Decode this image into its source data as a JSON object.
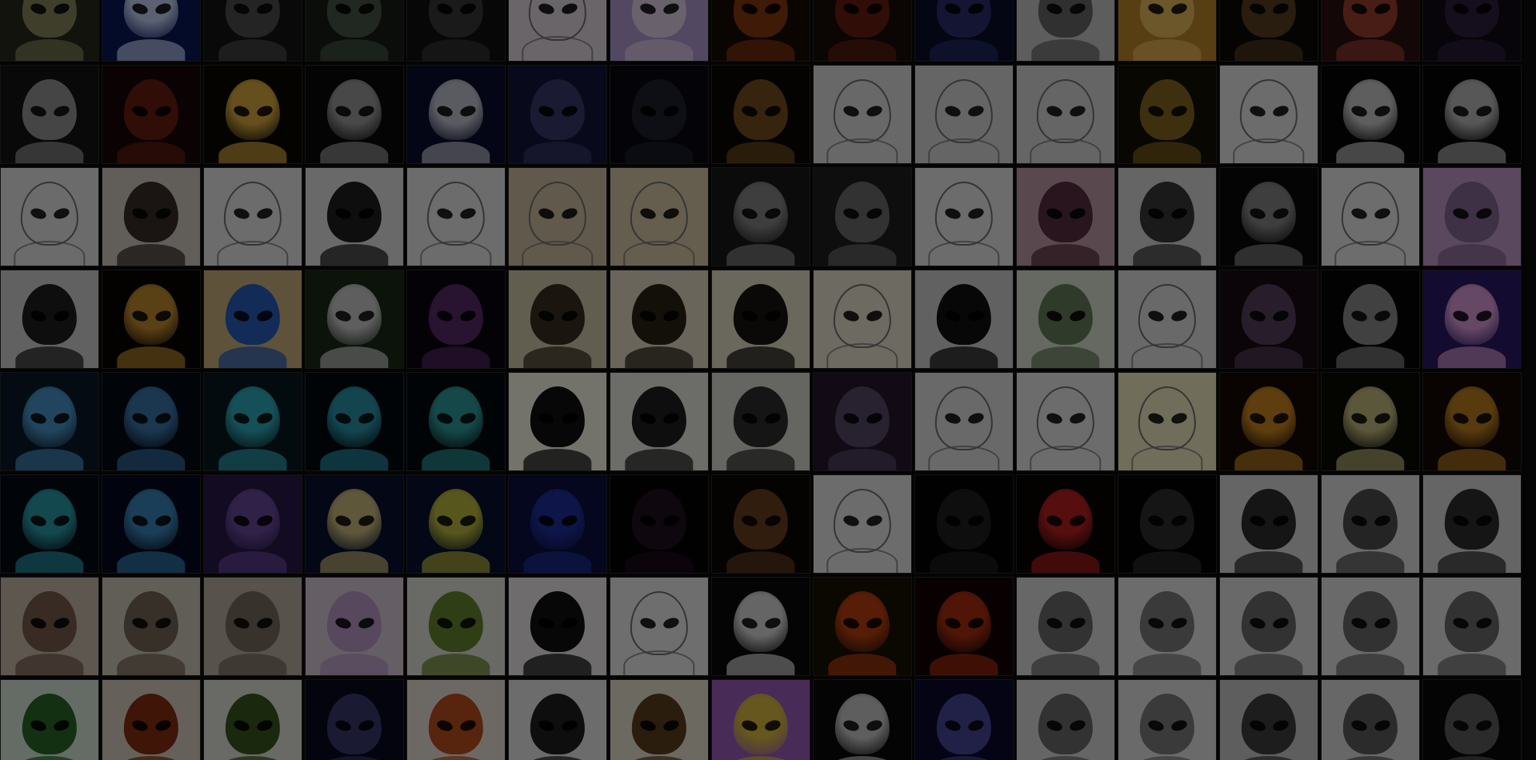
{
  "gallery": {
    "columns": 15,
    "rows": 8,
    "overlay": "dimmed",
    "tiles": [
      {
        "bg": "#2a2a1e",
        "fg": "#8a8a60",
        "style": "dark"
      },
      {
        "bg": "#0b1a5a",
        "fg": "#c9d6ff",
        "style": "glow"
      },
      {
        "bg": "#151515",
        "fg": "#505050",
        "style": "dark"
      },
      {
        "bg": "#1a1e1a",
        "fg": "#4a5a4a",
        "style": "dark"
      },
      {
        "bg": "#111",
        "fg": "#3a3a3a",
        "style": "dark"
      },
      {
        "bg": "#e9dfe8",
        "fg": "#b59fb6",
        "style": "sketch"
      },
      {
        "bg": "#b9a0d8",
        "fg": "#e8d8f0",
        "style": "light"
      },
      {
        "bg": "#1a0c06",
        "fg": "#8a3a10",
        "style": "dark"
      },
      {
        "bg": "#1a0c08",
        "fg": "#6a2010",
        "style": "dark"
      },
      {
        "bg": "#0b0e2a",
        "fg": "#2a3070",
        "style": "dark"
      },
      {
        "bg": "#cfcfcf",
        "fg": "#6a6a6a",
        "style": "light"
      },
      {
        "bg": "#c48a2a",
        "fg": "#f0c060",
        "style": "light"
      },
      {
        "bg": "#0e0a06",
        "fg": "#5a4020",
        "style": "dark"
      },
      {
        "bg": "#2a1210",
        "fg": "#a04030",
        "style": "dark"
      },
      {
        "bg": "#100a18",
        "fg": "#302040",
        "style": "dark"
      },
      {
        "bg": "#151515",
        "fg": "#9a9a9a",
        "style": "dark"
      },
      {
        "bg": "#1a0808",
        "fg": "#6a2010",
        "style": "dark"
      },
      {
        "bg": "#0a0800",
        "fg": "#e0b040",
        "style": "glow"
      },
      {
        "bg": "#0a0a0a",
        "fg": "#a0a0a0",
        "style": "glow"
      },
      {
        "bg": "#0a0e30",
        "fg": "#c8c8d8",
        "style": "glow"
      },
      {
        "bg": "#12163a",
        "fg": "#3a3a70",
        "style": "dark"
      },
      {
        "bg": "#0a0a12",
        "fg": "#202030",
        "style": "dark"
      },
      {
        "bg": "#0a0806",
        "fg": "#7a5020",
        "style": "dark"
      },
      {
        "bg": "#e6e6e6",
        "fg": "#9a9a9a",
        "style": "sketch"
      },
      {
        "bg": "#e0e0e0",
        "fg": "#8a8a8a",
        "style": "sketch"
      },
      {
        "bg": "#e0e0e0",
        "fg": "#7a7a7a",
        "style": "sketch"
      },
      {
        "bg": "#141004",
        "fg": "#8a6a20",
        "style": "dark"
      },
      {
        "bg": "#f0f0f0",
        "fg": "#303030",
        "style": "sketch"
      },
      {
        "bg": "#050505",
        "fg": "#d0d0d0",
        "style": "glow"
      },
      {
        "bg": "#050505",
        "fg": "#c0c0c0",
        "style": "glow"
      },
      {
        "bg": "#eeeeee",
        "fg": "#202020",
        "style": "sketch"
      },
      {
        "bg": "#d8d0c8",
        "fg": "#3a3028",
        "style": "light"
      },
      {
        "bg": "#f0f0f0",
        "fg": "#303030",
        "style": "sketch"
      },
      {
        "bg": "#e8e8e8",
        "fg": "#202020",
        "style": "light"
      },
      {
        "bg": "#f0f0f0",
        "fg": "#303030",
        "style": "sketch"
      },
      {
        "bg": "#d8c8a8",
        "fg": "#9a8a6a",
        "style": "sketch"
      },
      {
        "bg": "#e0d0b0",
        "fg": "#a08a60",
        "style": "sketch"
      },
      {
        "bg": "#1a1a1a",
        "fg": "#8a8a8a",
        "style": "glow"
      },
      {
        "bg": "#202020",
        "fg": "#707070",
        "style": "dark"
      },
      {
        "bg": "#f0f0f0",
        "fg": "#303030",
        "style": "sketch"
      },
      {
        "bg": "#c8a0b0",
        "fg": "#5a3040",
        "style": "light"
      },
      {
        "bg": "#e0e0e0",
        "fg": "#3a3a3a",
        "style": "light"
      },
      {
        "bg": "#0a0a0a",
        "fg": "#8a8a8a",
        "style": "glow"
      },
      {
        "bg": "#f2f2f2",
        "fg": "#303030",
        "style": "sketch"
      },
      {
        "bg": "#c8a0d0",
        "fg": "#8a6a9a",
        "style": "light"
      },
      {
        "bg": "#d8d8d8",
        "fg": "#202020",
        "style": "light"
      },
      {
        "bg": "#0a0604",
        "fg": "#c89030",
        "style": "glow"
      },
      {
        "bg": "#d0b880",
        "fg": "#2a60c0",
        "style": "light"
      },
      {
        "bg": "#1a2a1a",
        "fg": "#d0d0d0",
        "style": "glow"
      },
      {
        "bg": "#0a0610",
        "fg": "#5a2a6a",
        "style": "dark"
      },
      {
        "bg": "#d8d0b0",
        "fg": "#3a3020",
        "style": "light"
      },
      {
        "bg": "#e8e0c8",
        "fg": "#2a2418",
        "style": "light"
      },
      {
        "bg": "#ece4cc",
        "fg": "#181410",
        "style": "light"
      },
      {
        "bg": "#f0ecd8",
        "fg": "#6a6040",
        "style": "sketch"
      },
      {
        "bg": "#d8d8d8",
        "fg": "#101010",
        "style": "light"
      },
      {
        "bg": "#e0e8d8",
        "fg": "#6a8060",
        "style": "light"
      },
      {
        "bg": "#e8e8e8",
        "fg": "#5a5a5a",
        "style": "sketch"
      },
      {
        "bg": "#1a0c14",
        "fg": "#5a4060",
        "style": "dark"
      },
      {
        "bg": "#050505",
        "fg": "#909090",
        "style": "dark"
      },
      {
        "bg": "#2a1a6a",
        "fg": "#e0a0e0",
        "style": "glow"
      },
      {
        "bg": "#0a1a2a",
        "fg": "#4a9ad0",
        "style": "glow"
      },
      {
        "bg": "#040a14",
        "fg": "#3a7ab0",
        "style": "glow"
      },
      {
        "bg": "#0a1a20",
        "fg": "#30b0c0",
        "style": "glow"
      },
      {
        "bg": "#040a10",
        "fg": "#2a9ab0",
        "style": "glow"
      },
      {
        "bg": "#040a10",
        "fg": "#30a0a0",
        "style": "glow"
      },
      {
        "bg": "#fffff0",
        "fg": "#101010",
        "style": "light"
      },
      {
        "bg": "#f0f0e8",
        "fg": "#202020",
        "style": "light"
      },
      {
        "bg": "#e0e0d8",
        "fg": "#303030",
        "style": "light"
      },
      {
        "bg": "#281a30",
        "fg": "#5a4a6a",
        "style": "dark"
      },
      {
        "bg": "#e8e8e8",
        "fg": "#404040",
        "style": "sketch"
      },
      {
        "bg": "#f0f0f0",
        "fg": "#101010",
        "style": "sketch"
      },
      {
        "bg": "#f8f4c8",
        "fg": "#101010",
        "style": "sketch"
      },
      {
        "bg": "#140a04",
        "fg": "#d08a20",
        "style": "glow"
      },
      {
        "bg": "#0a0a04",
        "fg": "#c8c080",
        "style": "glow"
      },
      {
        "bg": "#140804",
        "fg": "#c08020",
        "style": "glow"
      },
      {
        "bg": "#040a14",
        "fg": "#2aa0b0",
        "style": "glow"
      },
      {
        "bg": "#040a20",
        "fg": "#3a8ac0",
        "style": "glow"
      },
      {
        "bg": "#2a1a4a",
        "fg": "#6a4aa0",
        "style": "glow"
      },
      {
        "bg": "#0a1030",
        "fg": "#d0c080",
        "style": "glow"
      },
      {
        "bg": "#0a1030",
        "fg": "#c0c040",
        "style": "glow"
      },
      {
        "bg": "#0a1040",
        "fg": "#2030a0",
        "style": "glow"
      },
      {
        "bg": "#050305",
        "fg": "#201020",
        "style": "dark"
      },
      {
        "bg": "#0a0806",
        "fg": "#6a4020",
        "style": "dark"
      },
      {
        "bg": "#f0f0f0",
        "fg": "#303030",
        "style": "sketch"
      },
      {
        "bg": "#040404",
        "fg": "#202020",
        "style": "dark"
      },
      {
        "bg": "#0a0404",
        "fg": "#c02020",
        "style": "glow"
      },
      {
        "bg": "#040404",
        "fg": "#303030",
        "style": "dark"
      },
      {
        "bg": "#e0e0e0",
        "fg": "#303030",
        "style": "light"
      },
      {
        "bg": "#e8e8e8",
        "fg": "#505050",
        "style": "light"
      },
      {
        "bg": "#e0e0e0",
        "fg": "#303030",
        "style": "light"
      },
      {
        "bg": "#d0c0b0",
        "fg": "#7a6050",
        "style": "light"
      },
      {
        "bg": "#d8d0c0",
        "fg": "#7a6a5a",
        "style": "light"
      },
      {
        "bg": "#c0b8a8",
        "fg": "#7a7060",
        "style": "light"
      },
      {
        "bg": "#e0d0e0",
        "fg": "#c0a0d0",
        "style": "light"
      },
      {
        "bg": "#e8e8e0",
        "fg": "#6a8a30",
        "style": "light"
      },
      {
        "bg": "#f4f0f0",
        "fg": "#101010",
        "style": "light"
      },
      {
        "bg": "#f4f4f4",
        "fg": "#303030",
        "style": "sketch"
      },
      {
        "bg": "#0a0a0a",
        "fg": "#e0e0e0",
        "style": "glow"
      },
      {
        "bg": "#1a1004",
        "fg": "#c04010",
        "style": "glow"
      },
      {
        "bg": "#140404",
        "fg": "#b03010",
        "style": "glow"
      },
      {
        "bg": "#e4e4e4",
        "fg": "#707070",
        "style": "light"
      },
      {
        "bg": "#f0f0f0",
        "fg": "#808080",
        "style": "light"
      },
      {
        "bg": "#e8e8e8",
        "fg": "#707070",
        "style": "light"
      },
      {
        "bg": "#eaeaea",
        "fg": "#707070",
        "style": "light"
      },
      {
        "bg": "#ececec",
        "fg": "#707070",
        "style": "light"
      },
      {
        "bg": "#e0f0e0",
        "fg": "#2a6a2a",
        "style": "light"
      },
      {
        "bg": "#e0d8c8",
        "fg": "#8a3010",
        "style": "light"
      },
      {
        "bg": "#e8e8e0",
        "fg": "#3a5a20",
        "style": "light"
      },
      {
        "bg": "#0a0a20",
        "fg": "#3a3a70",
        "style": "dark"
      },
      {
        "bg": "#f0e8e0",
        "fg": "#c05020",
        "style": "light"
      },
      {
        "bg": "#f0f0f0",
        "fg": "#202020",
        "style": "light"
      },
      {
        "bg": "#f0e8d8",
        "fg": "#604020",
        "style": "light"
      },
      {
        "bg": "#a060c0",
        "fg": "#e0c040",
        "style": "glow"
      },
      {
        "bg": "#0a0a0a",
        "fg": "#d0d0d0",
        "style": "glow"
      },
      {
        "bg": "#0a0a30",
        "fg": "#4a4aa0",
        "style": "dark"
      },
      {
        "bg": "#e0e0e0",
        "fg": "#707070",
        "style": "light"
      },
      {
        "bg": "#ececec",
        "fg": "#808080",
        "style": "light"
      },
      {
        "bg": "#d0d0d0",
        "fg": "#404040",
        "style": "light"
      },
      {
        "bg": "#e4e4e4",
        "fg": "#606060",
        "style": "light"
      },
      {
        "bg": "#0a0a0a",
        "fg": "#606060",
        "style": "dark"
      }
    ]
  }
}
